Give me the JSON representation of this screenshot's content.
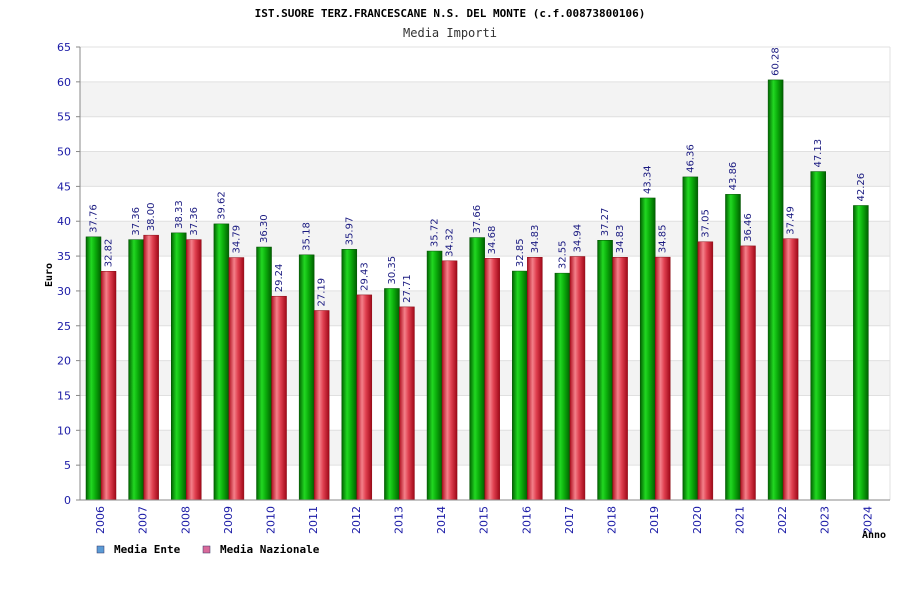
{
  "chart_data": {
    "type": "bar",
    "title": "IST.SUORE TERZ.FRANCESCANE N.S. DEL MONTE (c.f.00873800106)",
    "subtitle": "Media Importi",
    "xlabel": "Anno",
    "ylabel": "Euro",
    "ylim": [
      0,
      65
    ],
    "yticks": [
      "0",
      "5",
      "10",
      "15",
      "20",
      "25",
      "30",
      "35",
      "40",
      "45",
      "50",
      "55",
      "60",
      "65"
    ],
    "categories": [
      "2006",
      "2007",
      "2008",
      "2009",
      "2010",
      "2011",
      "2012",
      "2013",
      "2014",
      "2015",
      "2016",
      "2017",
      "2018",
      "2019",
      "2020",
      "2021",
      "2022",
      "2023",
      "2024"
    ],
    "series": [
      {
        "name": "Media Ente",
        "color": "#0aa00a",
        "values": [
          37.76,
          37.36,
          38.33,
          39.62,
          36.3,
          35.18,
          35.97,
          30.35,
          35.72,
          37.66,
          32.85,
          32.55,
          37.27,
          43.34,
          46.36,
          43.86,
          60.28,
          47.13,
          42.26
        ],
        "labels": [
          "37.76",
          "37.36",
          "38.33",
          "39.62",
          "36.30",
          "35.18",
          "35.97",
          "30.35",
          "35.72",
          "37.66",
          "32.85",
          "32.55",
          "37.27",
          "43.34",
          "46.36",
          "43.86",
          "60.28",
          "47.13",
          "42.26"
        ]
      },
      {
        "name": "Media Nazionale",
        "color": "#dd2a34",
        "values": [
          32.82,
          38.0,
          37.36,
          34.79,
          29.24,
          27.19,
          29.43,
          27.71,
          34.32,
          34.68,
          34.83,
          34.94,
          34.83,
          34.85,
          37.05,
          36.46,
          37.49,
          null,
          null
        ],
        "labels": [
          "32.82",
          "38.00",
          "37.36",
          "34.79",
          "29.24",
          "27.19",
          "29.43",
          "27.71",
          "34.32",
          "34.68",
          "34.83",
          "34.94",
          "34.83",
          "34.85",
          "37.05",
          "36.46",
          "37.49",
          null,
          null
        ]
      }
    ],
    "legend": [
      {
        "label": "Media Ente",
        "color": "#5b9bd5"
      },
      {
        "label": "Media Nazionale",
        "color": "#d96a9a"
      }
    ]
  }
}
